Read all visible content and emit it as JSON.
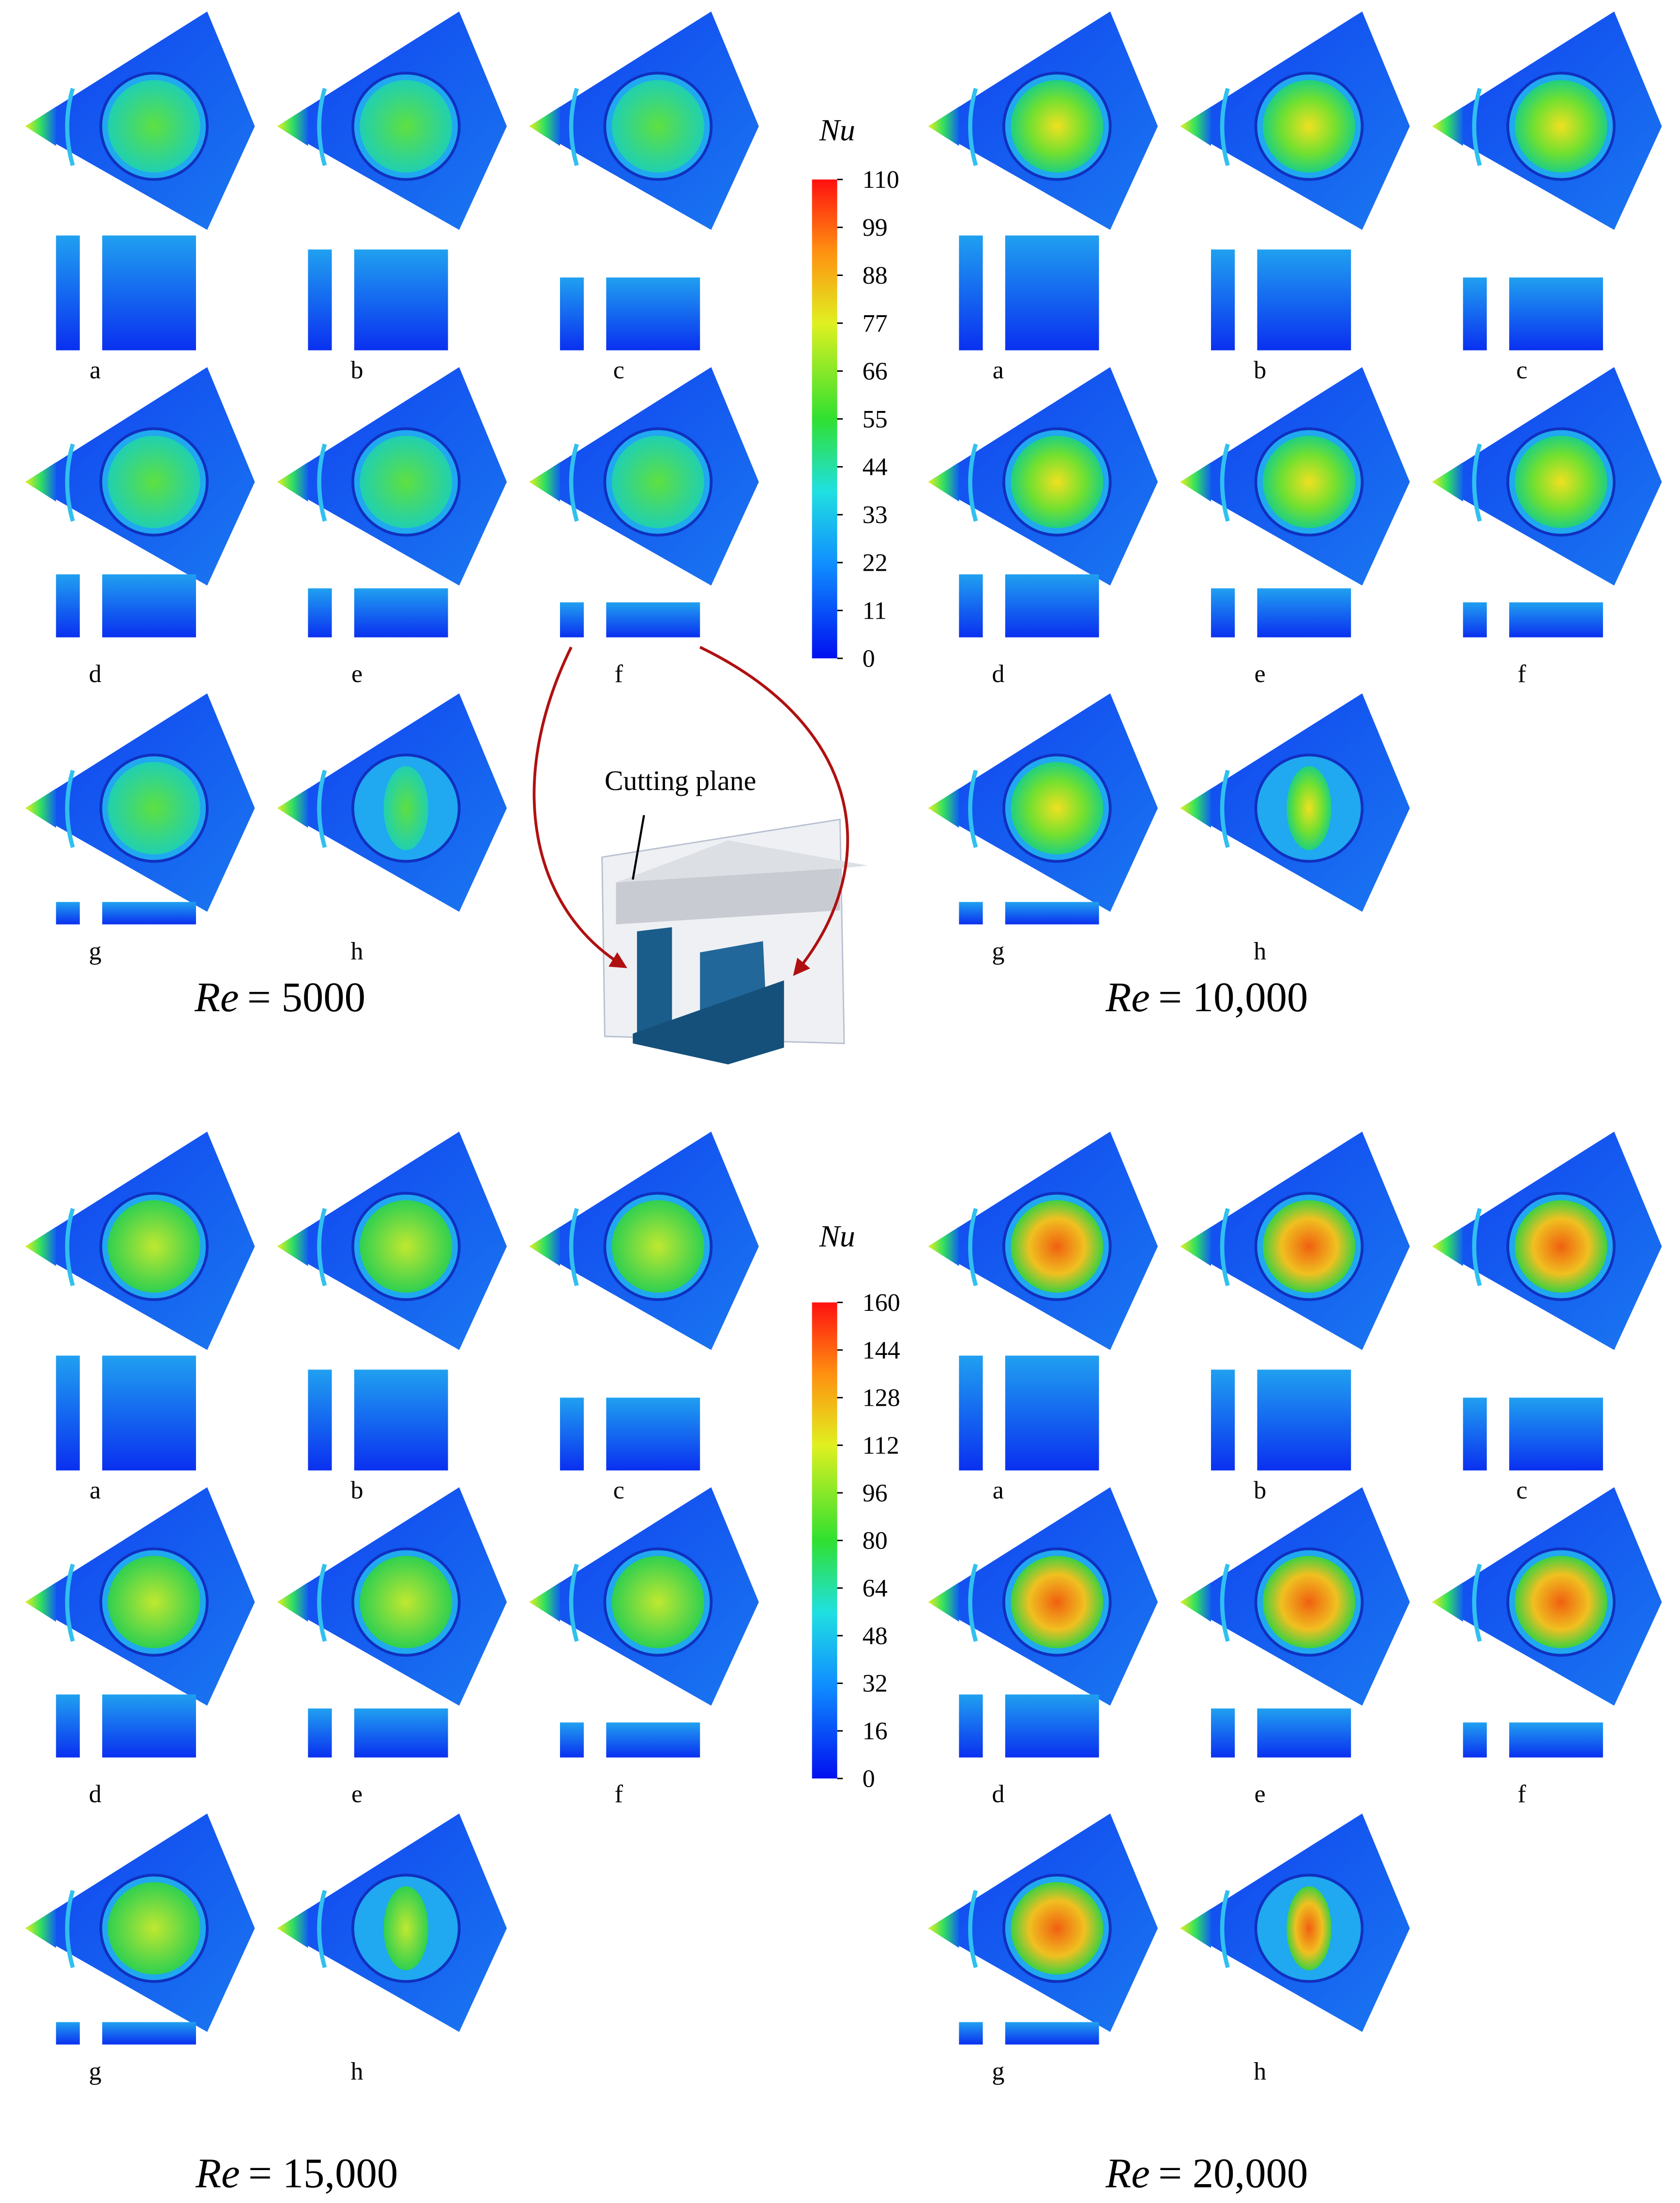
{
  "groups": [
    {
      "labels": [
        "a",
        "b",
        "c",
        "d",
        "e",
        "f",
        "g",
        "h"
      ],
      "re": {
        "symbol": "Re",
        "rest": "= 5000"
      }
    },
    {
      "labels": [
        "a",
        "b",
        "c",
        "d",
        "e",
        "f",
        "g",
        "h"
      ],
      "re": {
        "symbol": "Re",
        "rest": "= 10,000"
      }
    },
    {
      "labels": [
        "a",
        "b",
        "c",
        "d",
        "e",
        "f",
        "g",
        "h"
      ],
      "re": {
        "symbol": "Re",
        "rest": "= 15,000"
      }
    },
    {
      "labels": [
        "a",
        "b",
        "c",
        "d",
        "e",
        "f",
        "g",
        "h"
      ],
      "re": {
        "symbol": "Re",
        "rest": "= 20,000"
      }
    }
  ],
  "colorbars": [
    {
      "title": "Nu",
      "ticks": [
        0,
        11,
        22,
        33,
        44,
        55,
        66,
        77,
        88,
        99,
        110
      ]
    },
    {
      "title": "Nu",
      "ticks": [
        0,
        16,
        32,
        48,
        64,
        80,
        96,
        112,
        128,
        144,
        160
      ]
    }
  ],
  "inset": {
    "label": "Cutting plane"
  }
}
